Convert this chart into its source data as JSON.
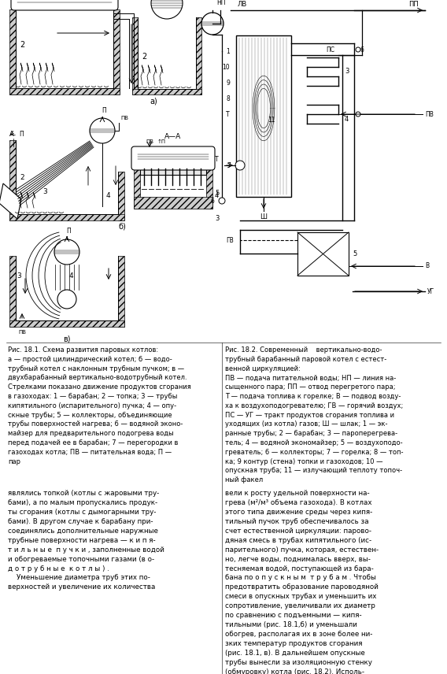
{
  "background_color": "#ffffff",
  "fig18_1_caption": "Рис. 18.1. Схема развития паровых котлов:\na — простой цилиндрический котел; б — водо-\nтрубный котел с наклонным трубным пучком; в —\nдвухбарабанный вертикально-водотрубный котел.\nСтрелками показано движение продуктов сгорания\nв газоходах: 1 — барабан; 2 — топка; 3 — трубы\nкипятильного (испарительного) пучка; 4 — опу-\nскные трубы; 5 — коллекторы, объединяющие\nтрубы поверхностей нагрева; 6 — водяной эконо-\nмайзер для предварительного подогрева воды\nперед подачей ее в барабан; 7 — перегородки в\nгазоходах котла; ПВ — питательная вода; П —\nпар",
  "fig18_2_caption": "Рис. 18.2. Современный    вертикально-водо-\nтрубный барабанный паровой котел с естест-\nвенной циркуляцией:\nПВ — подача питательной воды; НП — линия на-\nсыщенного пара; ПП — отвод перегретого пара;\nТ — подача топлива к горелке; В — подвод возду-\nха к воздухоподогревателю; ГВ — горячий воздух;\nПС — УГ — тракт продуктов сгорания топлива и\nуходящих (из котла) газов; Ш — шлак; 1 — эк-\nранные трубы; 2 — барабан; 3 — пароперегрева-\nтель; 4 — водяной экономайзер; 5 — воздухоподо-\nгреватель; 6 — коллекторы; 7 — горелка; 8 — топ-\nка; 9 контур (стена) топки и газоходов; 10 —\nопускная труба; 11 — излучающий теплоту топоч-\nный факел",
  "text_left_1": "являлись топкой (котлы с жаровыми тру-\nбами), а по малым пропускались продук-\nты сгорания (котлы с дымогарными тру-\nбами). В другом случае к барабану при-\nсоединялись дополнительные наружные\nтрубные поверхности нагрева — к и п я-\nт и л ь н ы е  п у ч к и , заполненные водой\nи обогреваемые топочными газами (в о-\nд о т р у б н ы е  к о т л ы ) .\n    Уменьшение диаметра труб этих по-\nверхностей и увеличение их количества",
  "text_right_1": "вели к росту удельной поверхности на-\nгрева (м²/м³ объема газохода). В котлах\nэтого типа движение среды через кипя-\nтильный пучок труб обеспечивалось за\nсчет естественной циркуляции: парово-\nдяная смесь в трубах кипятильного (ис-\nпарительного) пучка, которая, естествен-\nно, легче воды, поднималась вверх, вы-\nтесняемая водой, поступающей из бара-\nбана по о п у с к н ы м  т р у б а м . Чтобы\nпредотвратить образование пароводяной\nсмеси в опускных трубах и уменьшить их\nсопротивление, увеличивали их диаметр\nпо сравнению с подъемными — кипя-\nтильными (рис. 18.1,б) и уменьшали\nобогрев, располагая их в зоне более ни-\nзких температур продуктов сгорания\n(рис. 18.1, в). В дальнейшем опускные\nтрубы вынесли за изоляционную стенку\n(обмуровку) котла (рис. 18.2). Исполь-\nзование вертикальных трубок в качестве\nкипятильного пучка (см. рис. 18.1, в) по-\nвысило надежность циркуляции парово-"
}
